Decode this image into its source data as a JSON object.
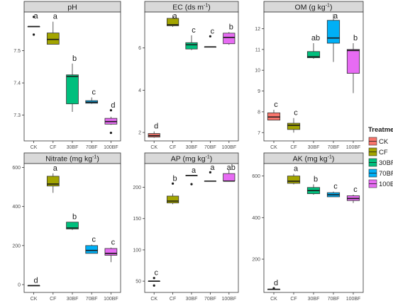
{
  "legend": {
    "title": "Treatment",
    "items": [
      {
        "label": "CK",
        "color": "#F8766D"
      },
      {
        "label": "CF",
        "color": "#A3A500"
      },
      {
        "label": "30BF",
        "color": "#00BF7D"
      },
      {
        "label": "70BF",
        "color": "#00B0F6"
      },
      {
        "label": "100BF",
        "color": "#E76BF3"
      }
    ]
  },
  "chart_data": [
    {
      "type": "box",
      "title": "pH",
      "title_sup": "",
      "title_tail": "",
      "categories": [
        "CK",
        "CF",
        "30BF",
        "70BF",
        "100BF"
      ],
      "ylim": [
        7.22,
        7.62
      ],
      "yticks": [
        7.3,
        7.4,
        7.5
      ],
      "boxes": [
        {
          "min": 7.575,
          "q1": 7.575,
          "med": 7.575,
          "q3": 7.575,
          "max": 7.575,
          "outliers": [
            7.605,
            7.55
          ],
          "letter": "a"
        },
        {
          "min": 7.52,
          "q1": 7.52,
          "med": 7.535,
          "q3": 7.555,
          "max": 7.59,
          "outliers": [],
          "letter": "a"
        },
        {
          "min": 7.31,
          "q1": 7.335,
          "med": 7.42,
          "q3": 7.425,
          "max": 7.46,
          "outliers": [],
          "letter": "b"
        },
        {
          "min": 7.335,
          "q1": 7.337,
          "med": 7.34,
          "q3": 7.345,
          "max": 7.355,
          "outliers": [],
          "letter": "c"
        },
        {
          "min": 7.27,
          "q1": 7.272,
          "med": 7.28,
          "q3": 7.29,
          "max": 7.295,
          "outliers": [
            7.315,
            7.245
          ],
          "letter": "d"
        }
      ]
    },
    {
      "type": "box",
      "title": "EC (ds m",
      "title_sup": "-1",
      "title_tail": ")",
      "categories": [
        "CK",
        "CF",
        "30BF",
        "70BF",
        "100BF"
      ],
      "ylim": [
        1.6,
        7.7
      ],
      "yticks": [
        2,
        4,
        6
      ],
      "boxes": [
        {
          "min": 1.75,
          "q1": 1.78,
          "med": 1.85,
          "q3": 1.95,
          "max": 2.05,
          "outliers": [],
          "letter": "d"
        },
        {
          "min": 7.0,
          "q1": 7.05,
          "med": 7.1,
          "q3": 7.4,
          "max": 7.55,
          "outliers": [],
          "letter": "a"
        },
        {
          "min": 5.9,
          "q1": 5.95,
          "med": 6.15,
          "q3": 6.25,
          "max": 6.6,
          "outliers": [],
          "letter": "c"
        },
        {
          "min": 6.05,
          "q1": 6.05,
          "med": 6.05,
          "q3": 6.05,
          "max": 6.05,
          "outliers": [
            6.55
          ],
          "letter": "c"
        },
        {
          "min": 6.15,
          "q1": 6.2,
          "med": 6.5,
          "q3": 6.7,
          "max": 6.75,
          "outliers": [],
          "letter": "b"
        }
      ]
    },
    {
      "type": "box",
      "title": "OM (g kg",
      "title_sup": "-1",
      "title_tail": ")",
      "categories": [
        "CK",
        "CF",
        "30BF",
        "70BF",
        "100BF"
      ],
      "ylim": [
        6.6,
        12.8
      ],
      "yticks": [
        7,
        8,
        9,
        10,
        11,
        12
      ],
      "boxes": [
        {
          "min": 7.6,
          "q1": 7.6,
          "med": 7.75,
          "q3": 7.95,
          "max": 8.1,
          "outliers": [],
          "letter": "c"
        },
        {
          "min": 7.0,
          "q1": 7.15,
          "med": 7.35,
          "q3": 7.45,
          "max": 7.7,
          "outliers": [],
          "letter": "c"
        },
        {
          "min": 10.55,
          "q1": 10.6,
          "med": 10.65,
          "q3": 10.9,
          "max": 11.3,
          "outliers": [],
          "letter": "ab"
        },
        {
          "min": 10.4,
          "q1": 11.3,
          "med": 11.55,
          "q3": 12.4,
          "max": 12.7,
          "outliers": [],
          "letter": "a"
        },
        {
          "min": 8.9,
          "q1": 9.85,
          "med": 10.95,
          "q3": 11.0,
          "max": 11.3,
          "outliers": [],
          "letter": "b"
        }
      ]
    },
    {
      "type": "box",
      "title": "Nitrate (mg kg",
      "title_sup": "-1",
      "title_tail": ")",
      "categories": [
        "CK",
        "CF",
        "30BF",
        "70BF",
        "100BF"
      ],
      "ylim": [
        -40,
        620
      ],
      "yticks": [
        0,
        200,
        400,
        600
      ],
      "boxes": [
        {
          "min": -5,
          "q1": -5,
          "med": -5,
          "q3": -5,
          "max": -5,
          "outliers": [],
          "letter": "d"
        },
        {
          "min": 470,
          "q1": 505,
          "med": 515,
          "q3": 555,
          "max": 570,
          "outliers": [],
          "letter": "a"
        },
        {
          "min": 280,
          "q1": 285,
          "med": 290,
          "q3": 320,
          "max": 320,
          "outliers": [],
          "letter": "b"
        },
        {
          "min": 160,
          "q1": 160,
          "med": 175,
          "q3": 200,
          "max": 205,
          "outliers": [],
          "letter": "c"
        },
        {
          "min": 115,
          "q1": 150,
          "med": 160,
          "q3": 185,
          "max": 190,
          "outliers": [],
          "letter": "c"
        }
      ]
    },
    {
      "type": "box",
      "title": "AP (mg kg",
      "title_sup": "-1",
      "title_tail": ")",
      "categories": [
        "CK",
        "CF",
        "30BF",
        "70BF",
        "100BF"
      ],
      "ylim": [
        32,
        238
      ],
      "yticks": [
        50,
        100,
        150,
        200
      ],
      "boxes": [
        {
          "min": 50,
          "q1": 50,
          "med": 50,
          "q3": 50,
          "max": 50,
          "outliers": [
            55,
            43
          ],
          "letter": "c"
        },
        {
          "min": 173,
          "q1": 175,
          "med": 178,
          "q3": 186,
          "max": 190,
          "outliers": [
            206
          ],
          "letter": "b"
        },
        {
          "min": 219,
          "q1": 219,
          "med": 219,
          "q3": 219,
          "max": 219,
          "outliers": [
            205
          ],
          "letter": "a"
        },
        {
          "min": 210,
          "q1": 210,
          "med": 210,
          "q3": 210,
          "max": 210,
          "outliers": [
            224
          ],
          "letter": "a"
        },
        {
          "min": 210,
          "q1": 210,
          "med": 210,
          "q3": 222,
          "max": 228,
          "outliers": [],
          "letter": "ab"
        }
      ]
    },
    {
      "type": "box",
      "title": "AK (mg kg",
      "title_sup": "-1",
      "title_tail": ")",
      "categories": [
        "CK",
        "CF",
        "30BF",
        "70BF",
        "100BF"
      ],
      "ylim": [
        40,
        660
      ],
      "yticks": [
        200,
        400,
        600
      ],
      "boxes": [
        {
          "min": 55,
          "q1": 55,
          "med": 55,
          "q3": 55,
          "max": 55,
          "outliers": [
            60
          ],
          "letter": "d"
        },
        {
          "min": 560,
          "q1": 565,
          "med": 575,
          "q3": 600,
          "max": 610,
          "outliers": [],
          "letter": "a"
        },
        {
          "min": 510,
          "q1": 515,
          "med": 530,
          "q3": 545,
          "max": 560,
          "outliers": [],
          "letter": "b"
        },
        {
          "min": 500,
          "q1": 500,
          "med": 510,
          "q3": 520,
          "max": 525,
          "outliers": [],
          "letter": "c"
        },
        {
          "min": 470,
          "q1": 482,
          "med": 492,
          "q3": 505,
          "max": 510,
          "outliers": [],
          "letter": "c"
        }
      ]
    }
  ]
}
